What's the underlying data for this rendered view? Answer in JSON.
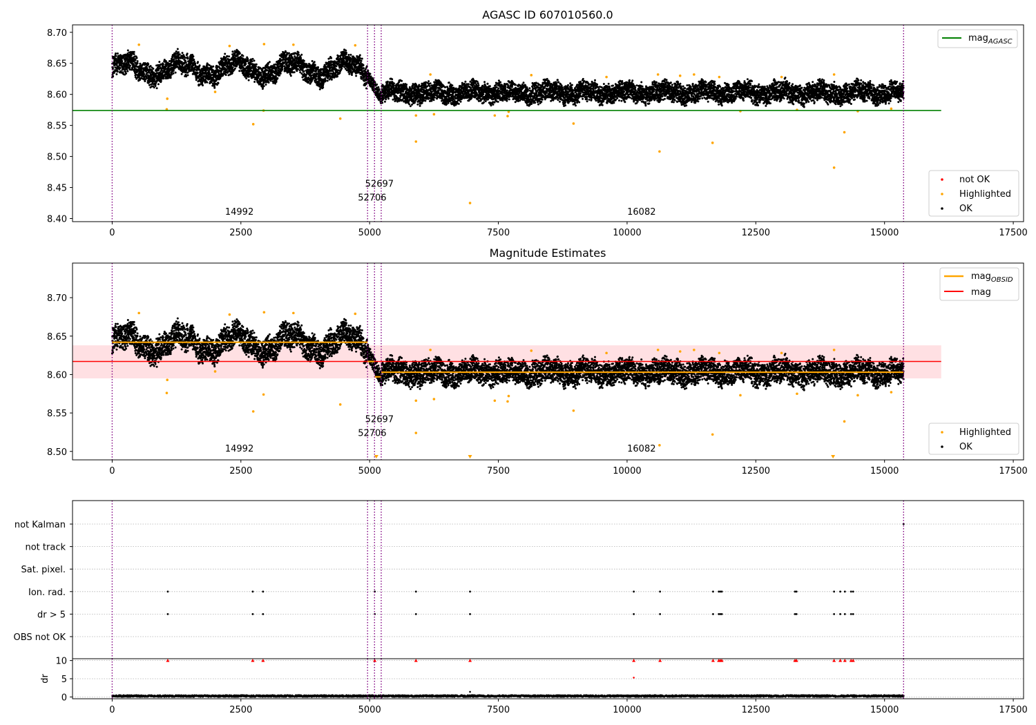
{
  "chart_data": [
    {
      "type": "scatter",
      "title": "AGASC ID 607010560.0",
      "xlabel": "",
      "ylabel": "",
      "xlim": [
        -770,
        17700
      ],
      "ylim": [
        8.395,
        8.712
      ],
      "xticks": [
        0,
        2500,
        5000,
        7500,
        10000,
        12500,
        15000,
        17500
      ],
      "xticklabels": [
        "0",
        "2500",
        "5000",
        "7500",
        "10000",
        "12500",
        "15000",
        "17500"
      ],
      "yticks": [
        8.4,
        8.45,
        8.5,
        8.55,
        8.6,
        8.65,
        8.7
      ],
      "yticklabels": [
        "8.40",
        "8.45",
        "8.50",
        "8.55",
        "8.60",
        "8.65",
        "8.70"
      ],
      "grid": false,
      "mag_agasc": 8.574,
      "mag_agasc_xrange": [
        -770,
        16100
      ],
      "obsid_boundaries": [
        0,
        4960,
        5095,
        5225,
        15370
      ],
      "obsid_labels": [
        {
          "text": "14992",
          "x": 2470,
          "y": 8.406
        },
        {
          "text": "52697",
          "x": 5190,
          "y": 8.451
        },
        {
          "text": "52706",
          "x": 5050,
          "y": 8.429
        },
        {
          "text": "16082",
          "x": 10280,
          "y": 8.406
        }
      ],
      "ok_segments": [
        {
          "x0": 0,
          "x1": 4960,
          "center": 8.641,
          "spread": 0.032
        },
        {
          "x0": 4960,
          "x1": 5225,
          "center": 8.612,
          "spread": 0.03
        },
        {
          "x0": 5225,
          "x1": 15370,
          "center": 8.603,
          "spread": 0.03
        }
      ],
      "highlighted_points": [
        [
          520,
          8.68
        ],
        [
          1070,
          8.593
        ],
        [
          1060,
          8.576
        ],
        [
          2000,
          8.604
        ],
        [
          2280,
          8.678
        ],
        [
          2740,
          8.552
        ],
        [
          2950,
          8.681
        ],
        [
          2940,
          8.574
        ],
        [
          3520,
          8.68
        ],
        [
          4430,
          8.561
        ],
        [
          4720,
          8.679
        ],
        [
          5900,
          8.566
        ],
        [
          5900,
          8.524
        ],
        [
          6180,
          8.632
        ],
        [
          6250,
          8.568
        ],
        [
          6950,
          8.425
        ],
        [
          7430,
          8.566
        ],
        [
          7680,
          8.565
        ],
        [
          7700,
          8.572
        ],
        [
          8140,
          8.631
        ],
        [
          8960,
          8.553
        ],
        [
          9600,
          8.628
        ],
        [
          10630,
          8.508
        ],
        [
          10600,
          8.632
        ],
        [
          11030,
          8.63
        ],
        [
          11300,
          8.632
        ],
        [
          11660,
          8.522
        ],
        [
          11790,
          8.628
        ],
        [
          12200,
          8.573
        ],
        [
          13000,
          8.628
        ],
        [
          13300,
          8.575
        ],
        [
          14020,
          8.482
        ],
        [
          14020,
          8.632
        ],
        [
          14220,
          8.539
        ],
        [
          14480,
          8.573
        ],
        [
          15130,
          8.577
        ]
      ],
      "legend_lines": [
        {
          "label": "mag",
          "label_subscript": "AGASC",
          "color": "#008000"
        }
      ],
      "legend_points": [
        {
          "label": "not OK",
          "color": "#ff0000"
        },
        {
          "label": "Highlighted",
          "color": "#ffa500"
        },
        {
          "label": "OK",
          "color": "#000000"
        }
      ],
      "legend_placement": [
        "top-right",
        "bottom-right"
      ]
    },
    {
      "type": "scatter",
      "title": "Magnitude Estimates",
      "xlabel": "",
      "ylabel": "",
      "xlim": [
        -770,
        17700
      ],
      "ylim": [
        8.489,
        8.745
      ],
      "xticks": [
        0,
        2500,
        5000,
        7500,
        10000,
        12500,
        15000,
        17500
      ],
      "xticklabels": [
        "0",
        "2500",
        "5000",
        "7500",
        "10000",
        "12500",
        "15000",
        "17500"
      ],
      "yticks": [
        8.5,
        8.55,
        8.6,
        8.65,
        8.7
      ],
      "yticklabels": [
        "8.50",
        "8.55",
        "8.60",
        "8.65",
        "8.70"
      ],
      "grid": false,
      "mag": 8.617,
      "mag_band": [
        8.595,
        8.638
      ],
      "mag_xrange": [
        -770,
        16100
      ],
      "mag_obsid_segments": [
        {
          "x0": 0,
          "x1": 4960,
          "value": 8.642
        },
        {
          "x0": 4960,
          "x1": 5095,
          "value": 8.617
        },
        {
          "x0": 5095,
          "x1": 5225,
          "value": 8.597
        },
        {
          "x0": 5225,
          "x1": 15370,
          "value": 8.603
        }
      ],
      "obsid_boundaries": [
        0,
        4960,
        5095,
        5225,
        15370
      ],
      "obsid_labels": [
        {
          "text": "14992",
          "x": 2470,
          "y": 8.5
        },
        {
          "text": "52697",
          "x": 5190,
          "y": 8.538
        },
        {
          "text": "52706",
          "x": 5050,
          "y": 8.52
        },
        {
          "text": "16082",
          "x": 10280,
          "y": 8.5
        }
      ],
      "ok_segments": [
        {
          "x0": 0,
          "x1": 4960,
          "center": 8.641,
          "spread": 0.032
        },
        {
          "x0": 4960,
          "x1": 5225,
          "center": 8.612,
          "spread": 0.03
        },
        {
          "x0": 5225,
          "x1": 15370,
          "center": 8.603,
          "spread": 0.03
        }
      ],
      "highlighted_points": [
        [
          520,
          8.68
        ],
        [
          1070,
          8.593
        ],
        [
          1060,
          8.576
        ],
        [
          2000,
          8.604
        ],
        [
          2280,
          8.678
        ],
        [
          2740,
          8.552
        ],
        [
          2950,
          8.681
        ],
        [
          2940,
          8.574
        ],
        [
          3520,
          8.68
        ],
        [
          4430,
          8.561
        ],
        [
          4720,
          8.679
        ],
        [
          5900,
          8.566
        ],
        [
          5900,
          8.524
        ],
        [
          6180,
          8.632
        ],
        [
          6250,
          8.568
        ],
        [
          7430,
          8.566
        ],
        [
          7680,
          8.565
        ],
        [
          7700,
          8.572
        ],
        [
          8140,
          8.631
        ],
        [
          8960,
          8.553
        ],
        [
          9600,
          8.628
        ],
        [
          10630,
          8.508
        ],
        [
          10600,
          8.632
        ],
        [
          11030,
          8.63
        ],
        [
          11300,
          8.632
        ],
        [
          11660,
          8.522
        ],
        [
          11790,
          8.628
        ],
        [
          12200,
          8.573
        ],
        [
          13000,
          8.628
        ],
        [
          13300,
          8.575
        ],
        [
          14020,
          8.632
        ],
        [
          14220,
          8.539
        ],
        [
          14480,
          8.573
        ],
        [
          15130,
          8.577
        ]
      ],
      "clipped_markers": [
        5130,
        6950,
        14000
      ],
      "legend_lines": [
        {
          "label": "mag",
          "label_subscript": "OBSID",
          "color": "#ffa500"
        },
        {
          "label": "mag",
          "label_subscript": "",
          "color": "#ff0000"
        }
      ],
      "legend_points": [
        {
          "label": "Highlighted",
          "color": "#ffa500"
        },
        {
          "label": "OK",
          "color": "#000000"
        }
      ],
      "legend_placement": [
        "top-right",
        "bottom-right"
      ]
    },
    {
      "type": "scatter",
      "title": "",
      "xlim": [
        -770,
        17700
      ],
      "flag_labels": [
        "not Kalman",
        "not track",
        "Sat. pixel.",
        "Ion. rad.",
        "dr > 5",
        "OBS not OK"
      ],
      "flag_points": {
        "Ion. rad.": [
          1080,
          2730,
          2930,
          5100,
          5900,
          6950,
          10130,
          10640,
          11670,
          11780,
          11810,
          11840,
          13260,
          13290,
          14020,
          14140,
          14230,
          14350,
          14390
        ],
        "dr > 5": [
          1080,
          2730,
          2930,
          5100,
          5900,
          6950,
          10130,
          10640,
          11670,
          11780,
          11810,
          11840,
          13260,
          13290,
          14020,
          14140,
          14230,
          14350,
          14390
        ],
        "not Kalman": [
          15370
        ]
      },
      "obsid_boundaries": [
        0,
        4960,
        5095,
        5225,
        15370
      ],
      "grid": true
    },
    {
      "type": "scatter",
      "title": "",
      "ylabel": "dr",
      "xlim": [
        -770,
        17700
      ],
      "ylim": [
        -0.5,
        10.5
      ],
      "xticks": [
        0,
        2500,
        5000,
        7500,
        10000,
        12500,
        15000,
        17500
      ],
      "xticklabels": [
        "0",
        "2500",
        "5000",
        "7500",
        "10000",
        "12500",
        "15000",
        "17500"
      ],
      "yticks": [
        0,
        5,
        10
      ],
      "yticklabels": [
        "0",
        "5",
        "10"
      ],
      "clipped_high_points": [
        1080,
        2730,
        2930,
        5100,
        5900,
        6950,
        10130,
        10640,
        11670,
        11780,
        11810,
        11840,
        13260,
        13290,
        14020,
        14140,
        14230,
        14350,
        14390
      ],
      "extra_points": [
        [
          10130,
          5.3
        ],
        [
          6950,
          1.4
        ]
      ],
      "ok_band": [
        0,
        0.5
      ],
      "obsid_boundaries": [
        0,
        4960,
        5095,
        5225,
        15370
      ],
      "grid": true
    }
  ],
  "colors": {
    "ok": "#000000",
    "highlighted": "#ffa500",
    "not_ok": "#ff0000",
    "agasc_line": "#008000",
    "mag_line": "#ff0000",
    "mag_band": "#ffe0e3",
    "obsid_line": "#ffa500",
    "obsid_boundary": "#800080",
    "grid": "#b0b0b0"
  }
}
